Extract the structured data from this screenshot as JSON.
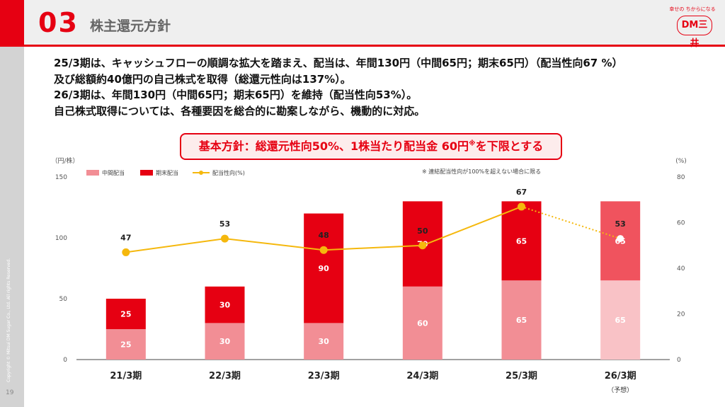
{
  "header": {
    "section_number": "03",
    "title": "株主還元方針",
    "logo_tagline": "幸せの ちからになる",
    "logo_text": "DM三井"
  },
  "sidebar": {
    "copyright": "Copyright © Mitsui DM Sugar Co., Ltd. All rights Reserved.",
    "page_number": "19"
  },
  "intro_lines": [
    "25/3期は、キャッシュフローの順調な拡大を踏まえ、配当は、年間130円（中間65円；期末65円）（配当性向67 %）",
    "及び総額約40億円の自己株式を取得（総還元性向は137%）。",
    "26/3期は、年間130円（中間65円；期末65円）を維持（配当性向53%）。",
    "自己株式取得については、各種要因を総合的に勘案しながら、機動的に対応。"
  ],
  "policy": {
    "text": "基本方針：総還元性向50%、1株当たり配当金 60円",
    "mark": "※",
    "suffix": "を下限とする"
  },
  "chart_data": {
    "type": "bar",
    "stacked": true,
    "categories": [
      "21/3期",
      "22/3期",
      "23/3期",
      "24/3期",
      "25/3期",
      "26/3期"
    ],
    "category_sublabels": [
      "",
      "",
      "",
      "",
      "",
      "（予想）"
    ],
    "series": [
      {
        "name": "中間配当",
        "values": [
          25,
          30,
          30,
          60,
          65,
          65
        ],
        "color": "#f28e95",
        "forecast_color": "#f9c2c6"
      },
      {
        "name": "期末配当",
        "values": [
          25,
          30,
          90,
          70,
          65,
          65
        ],
        "color": "#e60012",
        "forecast_color": "#f0535e"
      }
    ],
    "line_series": {
      "name": "配当性向(%)",
      "values": [
        47,
        53,
        48,
        50,
        67,
        53
      ],
      "color": "#f5b80d",
      "axis": "right"
    },
    "forecast_index": 5,
    "ylabel_left": "（円/株）",
    "ylabel_right": "(%)",
    "ylim_left": [
      0,
      150
    ],
    "yticks_left": [
      0,
      50,
      100,
      150
    ],
    "ylim_right": [
      0,
      80
    ],
    "yticks_right": [
      0,
      20,
      40,
      60,
      80
    ],
    "legend_position": "top-left",
    "note": "※ 連結配当性向が100%を超えない場合に限る",
    "grid": false
  }
}
